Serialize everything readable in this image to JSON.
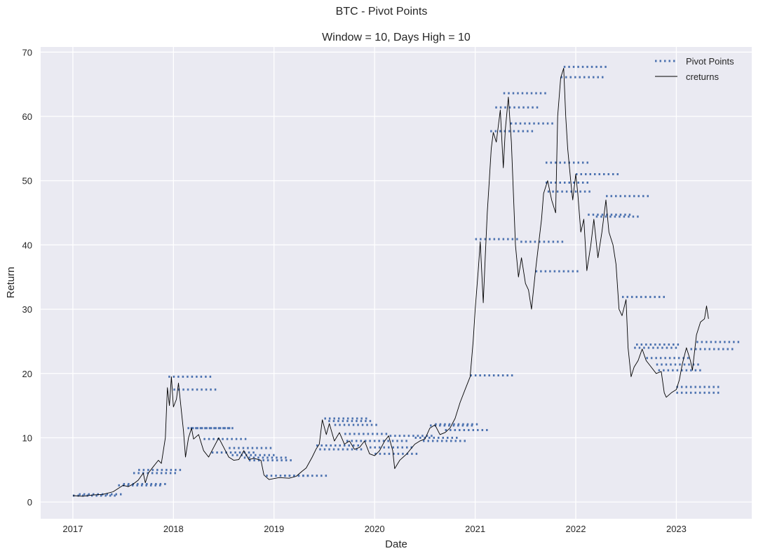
{
  "chart_data": {
    "type": "line",
    "suptitle": "BTC - Pivot Points",
    "title": "Window = 10, Days High = 10",
    "xlabel": "Date",
    "ylabel": "Return",
    "xlim": [
      2016.68,
      2023.75
    ],
    "ylim": [
      -2.6,
      70.8
    ],
    "xticks": [
      2017,
      2018,
      2019,
      2020,
      2021,
      2022,
      2023
    ],
    "xtick_labels": [
      "2017",
      "2018",
      "2019",
      "2020",
      "2021",
      "2022",
      "2023"
    ],
    "yticks": [
      0,
      10,
      20,
      30,
      40,
      50,
      60,
      70
    ],
    "ytick_labels": [
      "0",
      "10",
      "20",
      "30",
      "40",
      "50",
      "60",
      "70"
    ],
    "grid": true,
    "legend": {
      "placement": "top-right",
      "entries": [
        "Pivot Points",
        "creturns"
      ]
    },
    "colors": {
      "pivot": "#4c72b0",
      "creturns": "#000000",
      "background": "#eaeaf2"
    },
    "pivot_length_years": 0.45,
    "series": [
      {
        "name": "creturns",
        "points": [
          [
            2017.0,
            1.0
          ],
          [
            2017.1,
            0.9
          ],
          [
            2017.2,
            1.1
          ],
          [
            2017.3,
            1.2
          ],
          [
            2017.4,
            1.6
          ],
          [
            2017.5,
            2.6
          ],
          [
            2017.55,
            2.4
          ],
          [
            2017.6,
            2.8
          ],
          [
            2017.65,
            3.4
          ],
          [
            2017.7,
            4.5
          ],
          [
            2017.72,
            3.0
          ],
          [
            2017.75,
            4.5
          ],
          [
            2017.8,
            5.5
          ],
          [
            2017.85,
            6.5
          ],
          [
            2017.88,
            6.0
          ],
          [
            2017.92,
            10
          ],
          [
            2017.94,
            17.8
          ],
          [
            2017.96,
            15
          ],
          [
            2017.98,
            19.5
          ],
          [
            2018.0,
            14.8
          ],
          [
            2018.03,
            16
          ],
          [
            2018.05,
            18.5
          ],
          [
            2018.08,
            14
          ],
          [
            2018.1,
            11
          ],
          [
            2018.12,
            7.0
          ],
          [
            2018.15,
            10
          ],
          [
            2018.18,
            11.5
          ],
          [
            2018.2,
            9.8
          ],
          [
            2018.25,
            10.5
          ],
          [
            2018.3,
            8.0
          ],
          [
            2018.35,
            7.0
          ],
          [
            2018.4,
            8.5
          ],
          [
            2018.45,
            10
          ],
          [
            2018.5,
            8.5
          ],
          [
            2018.55,
            7.0
          ],
          [
            2018.6,
            6.5
          ],
          [
            2018.65,
            6.6
          ],
          [
            2018.7,
            8.0
          ],
          [
            2018.75,
            6.6
          ],
          [
            2018.8,
            6.8
          ],
          [
            2018.87,
            6.5
          ],
          [
            2018.9,
            4.2
          ],
          [
            2018.95,
            3.5
          ],
          [
            2019.05,
            3.8
          ],
          [
            2019.15,
            3.7
          ],
          [
            2019.22,
            4.0
          ],
          [
            2019.28,
            4.8
          ],
          [
            2019.32,
            5.3
          ],
          [
            2019.38,
            7.0
          ],
          [
            2019.42,
            8.3
          ],
          [
            2019.45,
            9.0
          ],
          [
            2019.48,
            12.8
          ],
          [
            2019.52,
            10.5
          ],
          [
            2019.55,
            12.2
          ],
          [
            2019.6,
            9.5
          ],
          [
            2019.65,
            10.8
          ],
          [
            2019.7,
            9.0
          ],
          [
            2019.75,
            9.5
          ],
          [
            2019.8,
            8.2
          ],
          [
            2019.85,
            8.5
          ],
          [
            2019.9,
            9.5
          ],
          [
            2019.95,
            7.5
          ],
          [
            2020.0,
            7.2
          ],
          [
            2020.05,
            8.0
          ],
          [
            2020.1,
            9.5
          ],
          [
            2020.14,
            10.3
          ],
          [
            2020.18,
            8.0
          ],
          [
            2020.2,
            5.2
          ],
          [
            2020.25,
            6.5
          ],
          [
            2020.32,
            7.5
          ],
          [
            2020.4,
            9.0
          ],
          [
            2020.45,
            9.5
          ],
          [
            2020.5,
            9.8
          ],
          [
            2020.55,
            11.5
          ],
          [
            2020.6,
            12.0
          ],
          [
            2020.65,
            10.5
          ],
          [
            2020.7,
            10.8
          ],
          [
            2020.75,
            11.5
          ],
          [
            2020.8,
            13.0
          ],
          [
            2020.85,
            15.5
          ],
          [
            2020.9,
            17.5
          ],
          [
            2020.95,
            19.5
          ],
          [
            2020.98,
            25
          ],
          [
            2021.0,
            30
          ],
          [
            2021.03,
            36
          ],
          [
            2021.05,
            40.5
          ],
          [
            2021.08,
            31
          ],
          [
            2021.1,
            38
          ],
          [
            2021.12,
            45
          ],
          [
            2021.14,
            50
          ],
          [
            2021.16,
            55
          ],
          [
            2021.18,
            57.5
          ],
          [
            2021.21,
            56
          ],
          [
            2021.25,
            61
          ],
          [
            2021.28,
            52
          ],
          [
            2021.3,
            58
          ],
          [
            2021.33,
            63
          ],
          [
            2021.36,
            56
          ],
          [
            2021.38,
            48
          ],
          [
            2021.4,
            40
          ],
          [
            2021.43,
            35
          ],
          [
            2021.46,
            38
          ],
          [
            2021.5,
            34
          ],
          [
            2021.53,
            33
          ],
          [
            2021.56,
            30
          ],
          [
            2021.6,
            36
          ],
          [
            2021.63,
            40
          ],
          [
            2021.66,
            44
          ],
          [
            2021.68,
            48
          ],
          [
            2021.72,
            50
          ],
          [
            2021.76,
            47
          ],
          [
            2021.8,
            45
          ],
          [
            2021.82,
            60
          ],
          [
            2021.85,
            66
          ],
          [
            2021.88,
            67.5
          ],
          [
            2021.9,
            60
          ],
          [
            2021.92,
            55
          ],
          [
            2021.95,
            50
          ],
          [
            2021.97,
            47
          ],
          [
            2022.0,
            51
          ],
          [
            2022.02,
            48
          ],
          [
            2022.05,
            42
          ],
          [
            2022.08,
            44
          ],
          [
            2022.11,
            36
          ],
          [
            2022.15,
            40
          ],
          [
            2022.18,
            44
          ],
          [
            2022.22,
            38
          ],
          [
            2022.26,
            42
          ],
          [
            2022.3,
            47
          ],
          [
            2022.33,
            42
          ],
          [
            2022.37,
            40
          ],
          [
            2022.4,
            37
          ],
          [
            2022.43,
            30
          ],
          [
            2022.46,
            29
          ],
          [
            2022.5,
            31.5
          ],
          [
            2022.52,
            24
          ],
          [
            2022.55,
            19.5
          ],
          [
            2022.58,
            21
          ],
          [
            2022.62,
            22
          ],
          [
            2022.66,
            23.8
          ],
          [
            2022.7,
            22
          ],
          [
            2022.75,
            21
          ],
          [
            2022.8,
            20
          ],
          [
            2022.85,
            20.3
          ],
          [
            2022.88,
            17
          ],
          [
            2022.9,
            16.3
          ],
          [
            2022.95,
            17
          ],
          [
            2023.0,
            17.5
          ],
          [
            2023.03,
            19
          ],
          [
            2023.06,
            21.5
          ],
          [
            2023.1,
            24
          ],
          [
            2023.14,
            22
          ],
          [
            2023.16,
            20.5
          ],
          [
            2023.2,
            26
          ],
          [
            2023.24,
            28
          ],
          [
            2023.28,
            28.5
          ],
          [
            2023.3,
            30.5
          ],
          [
            2023.32,
            28.5
          ]
        ]
      },
      {
        "name": "Pivot Points",
        "levels": [
          [
            2017.0,
            1.0
          ],
          [
            2017.06,
            1.2
          ],
          [
            2017.45,
            2.6
          ],
          [
            2017.5,
            2.8
          ],
          [
            2017.6,
            4.5
          ],
          [
            2017.65,
            5.0
          ],
          [
            2017.95,
            19.5
          ],
          [
            2018.0,
            17.5
          ],
          [
            2018.14,
            11.5
          ],
          [
            2018.17,
            11.5
          ],
          [
            2018.3,
            9.8
          ],
          [
            2018.38,
            7.7
          ],
          [
            2018.55,
            8.4
          ],
          [
            2018.58,
            7.3
          ],
          [
            2018.7,
            6.9
          ],
          [
            2018.75,
            6.5
          ],
          [
            2018.92,
            4.1
          ],
          [
            2019.1,
            4.1
          ],
          [
            2019.45,
            8.2
          ],
          [
            2019.42,
            8.8
          ],
          [
            2019.5,
            13.0
          ],
          [
            2019.54,
            12.6
          ],
          [
            2019.6,
            12.0
          ],
          [
            2019.7,
            10.6
          ],
          [
            2019.72,
            9.5
          ],
          [
            2019.9,
            9.5
          ],
          [
            2019.95,
            8.5
          ],
          [
            2020.0,
            7.5
          ],
          [
            2020.15,
            10.3
          ],
          [
            2020.4,
            10.0
          ],
          [
            2020.48,
            9.5
          ],
          [
            2020.55,
            11.9
          ],
          [
            2020.6,
            12.1
          ],
          [
            2020.7,
            11.2
          ],
          [
            2020.95,
            19.7
          ],
          [
            2021.0,
            40.9
          ],
          [
            2021.15,
            57.7
          ],
          [
            2021.2,
            61.4
          ],
          [
            2021.28,
            63.6
          ],
          [
            2021.35,
            58.9
          ],
          [
            2021.45,
            40.5
          ],
          [
            2021.6,
            35.9
          ],
          [
            2021.7,
            52.8
          ],
          [
            2021.7,
            49.7
          ],
          [
            2021.72,
            48.3
          ],
          [
            2021.85,
            66.1
          ],
          [
            2021.88,
            67.7
          ],
          [
            2022.0,
            51.0
          ],
          [
            2022.12,
            44.7
          ],
          [
            2022.2,
            44.4
          ],
          [
            2022.3,
            47.6
          ],
          [
            2022.46,
            31.9
          ],
          [
            2022.6,
            24.5
          ],
          [
            2022.58,
            24.0
          ],
          [
            2022.7,
            22.4
          ],
          [
            2022.8,
            21.4
          ],
          [
            2022.82,
            20.5
          ],
          [
            2023.0,
            17.9
          ],
          [
            2023.0,
            17.0
          ],
          [
            2023.2,
            24.9
          ],
          [
            2023.14,
            23.8
          ]
        ]
      }
    ]
  }
}
